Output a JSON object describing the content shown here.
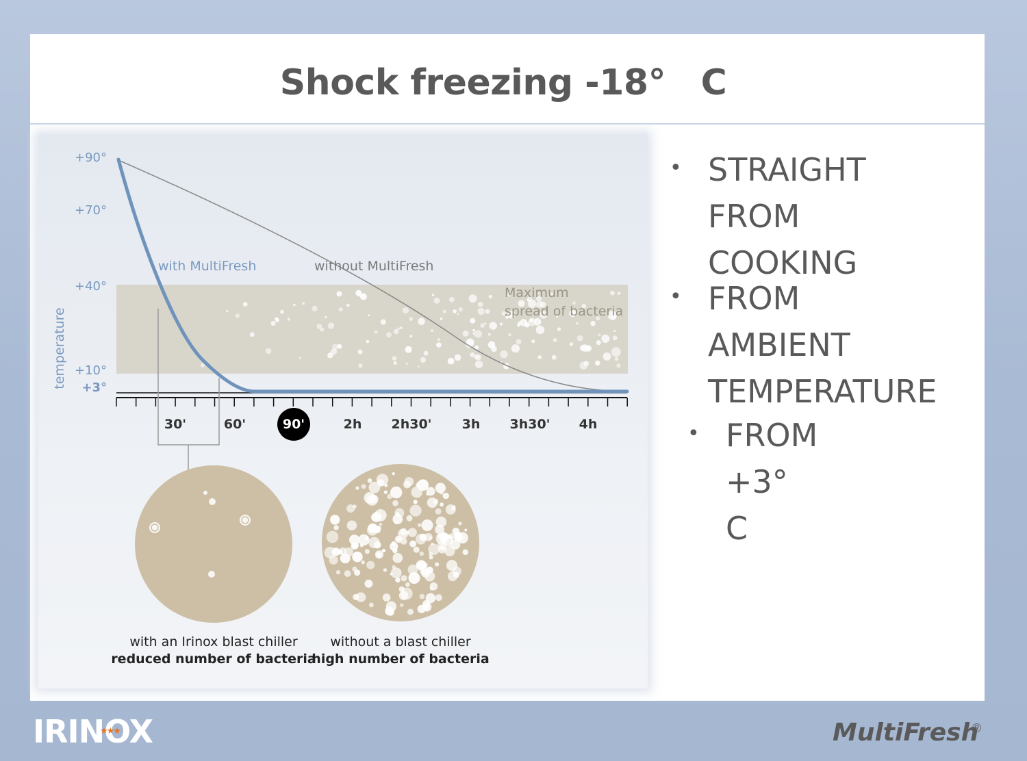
{
  "title": "Shock freezing -18°　C",
  "bullets": [
    {
      "text": "STRAIGHT\nFROM COOKING"
    },
    {
      "text": "FROM AMBIENT\nTEMPERATURE"
    },
    {
      "text": "FROM +3°　C"
    }
  ],
  "figure": {
    "y_axis_label": "temperature",
    "y_ticks": [
      "+90°",
      "+70°",
      "+40°",
      "+10°",
      "+3°"
    ],
    "x_ticks": [
      "30'",
      "60'",
      "90'",
      "2h",
      "2h30'",
      "3h",
      "3h30'",
      "4h"
    ],
    "highlighted_tick": "90'",
    "curve_labels": {
      "with": "with MultiFresh",
      "without": "without MultiFresh"
    },
    "zone_label": [
      "Maximum",
      "spread of bacteria"
    ],
    "circles": [
      {
        "line1": "with an Irinox blast chiller",
        "line2": "reduced number of bacteria"
      },
      {
        "line1": "without a blast chiller",
        "line2": "high number of bacteria"
      }
    ],
    "colors": {
      "curve_with": "#6f93bb",
      "curve_without": "#8c8c8c",
      "zone": "#d5d0c3",
      "circle": "#cdbfa6",
      "axis_text": "#7a98bf"
    }
  },
  "logos": {
    "left": "IRINOX",
    "left_stars": "★★★",
    "right": "MultiFresh",
    "right_mark": "®"
  }
}
